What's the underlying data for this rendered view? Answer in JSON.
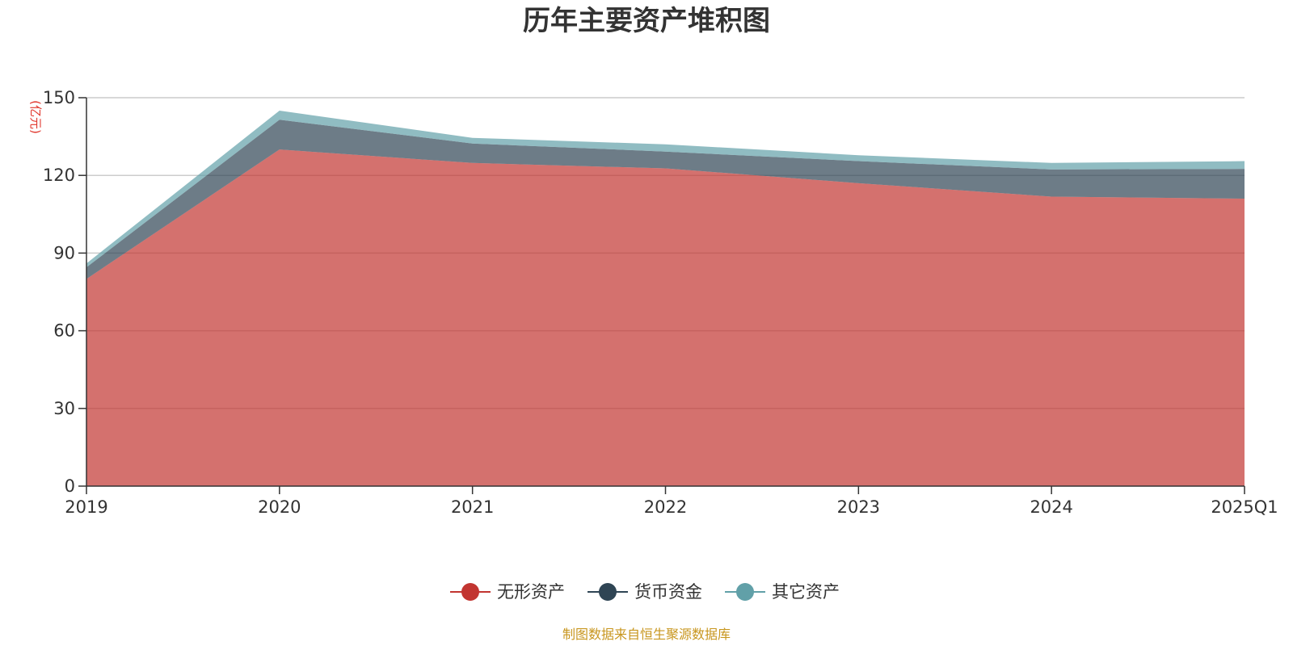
{
  "chart_data": {
    "type": "area",
    "stacked": true,
    "title": "历年主要资产堆积图",
    "ylabel": "(亿元)",
    "xlabel": "",
    "categories": [
      "2019",
      "2020",
      "2021",
      "2022",
      "2023",
      "2024",
      "2025Q1"
    ],
    "ylim": [
      0,
      150
    ],
    "yticks": [
      0,
      30,
      60,
      90,
      120,
      150
    ],
    "grid": true,
    "legend_position": "bottom",
    "series": [
      {
        "name": "无形资产",
        "color": "#c23531",
        "values": [
          80,
          130,
          124.8,
          122.7,
          117,
          111.8,
          111
        ]
      },
      {
        "name": "货币资金",
        "color": "#2f4554",
        "values": [
          4.5,
          11.5,
          7.5,
          6.5,
          8.5,
          10.5,
          11.5
        ]
      },
      {
        "name": "其它资产",
        "color": "#61a0a8",
        "values": [
          1.5,
          3.5,
          2.2,
          2.8,
          2.3,
          2.5,
          3
        ]
      }
    ],
    "source": "制图数据来自恒生聚源数据库"
  }
}
